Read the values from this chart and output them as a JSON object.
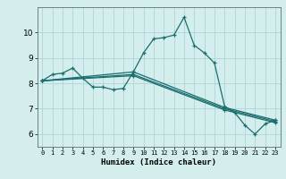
{
  "xlabel": "Humidex (Indice chaleur)",
  "background_color": "#d4eeee",
  "grid_color": "#b0d4d4",
  "line_color": "#1a6e6e",
  "xlim": [
    -0.5,
    23.5
  ],
  "ylim": [
    5.5,
    11.0
  ],
  "yticks": [
    6,
    7,
    8,
    9,
    10
  ],
  "xticks": [
    0,
    1,
    2,
    3,
    4,
    5,
    6,
    7,
    8,
    9,
    10,
    11,
    12,
    13,
    14,
    15,
    16,
    17,
    18,
    19,
    20,
    21,
    22,
    23
  ],
  "series_main": [
    8.1,
    8.35,
    8.4,
    8.6,
    8.2,
    7.85,
    7.85,
    7.75,
    7.8,
    8.45,
    9.2,
    9.75,
    9.8,
    9.9,
    10.6,
    9.5,
    9.2,
    8.8,
    7.1,
    6.85,
    6.35,
    6.0,
    6.4,
    6.55
  ],
  "series_lines": [
    {
      "x0": 0,
      "y0": 8.1,
      "x1": 9,
      "y1": 8.45,
      "x2": 18,
      "y2": 7.05,
      "x3": 23,
      "y3": 6.55
    },
    {
      "x0": 0,
      "y0": 8.1,
      "x1": 9,
      "y1": 8.35,
      "x2": 18,
      "y2": 7.0,
      "x3": 23,
      "y3": 6.5
    },
    {
      "x0": 0,
      "y0": 8.1,
      "x1": 9,
      "y1": 8.3,
      "x2": 18,
      "y2": 6.95,
      "x3": 23,
      "y3": 6.45
    }
  ]
}
